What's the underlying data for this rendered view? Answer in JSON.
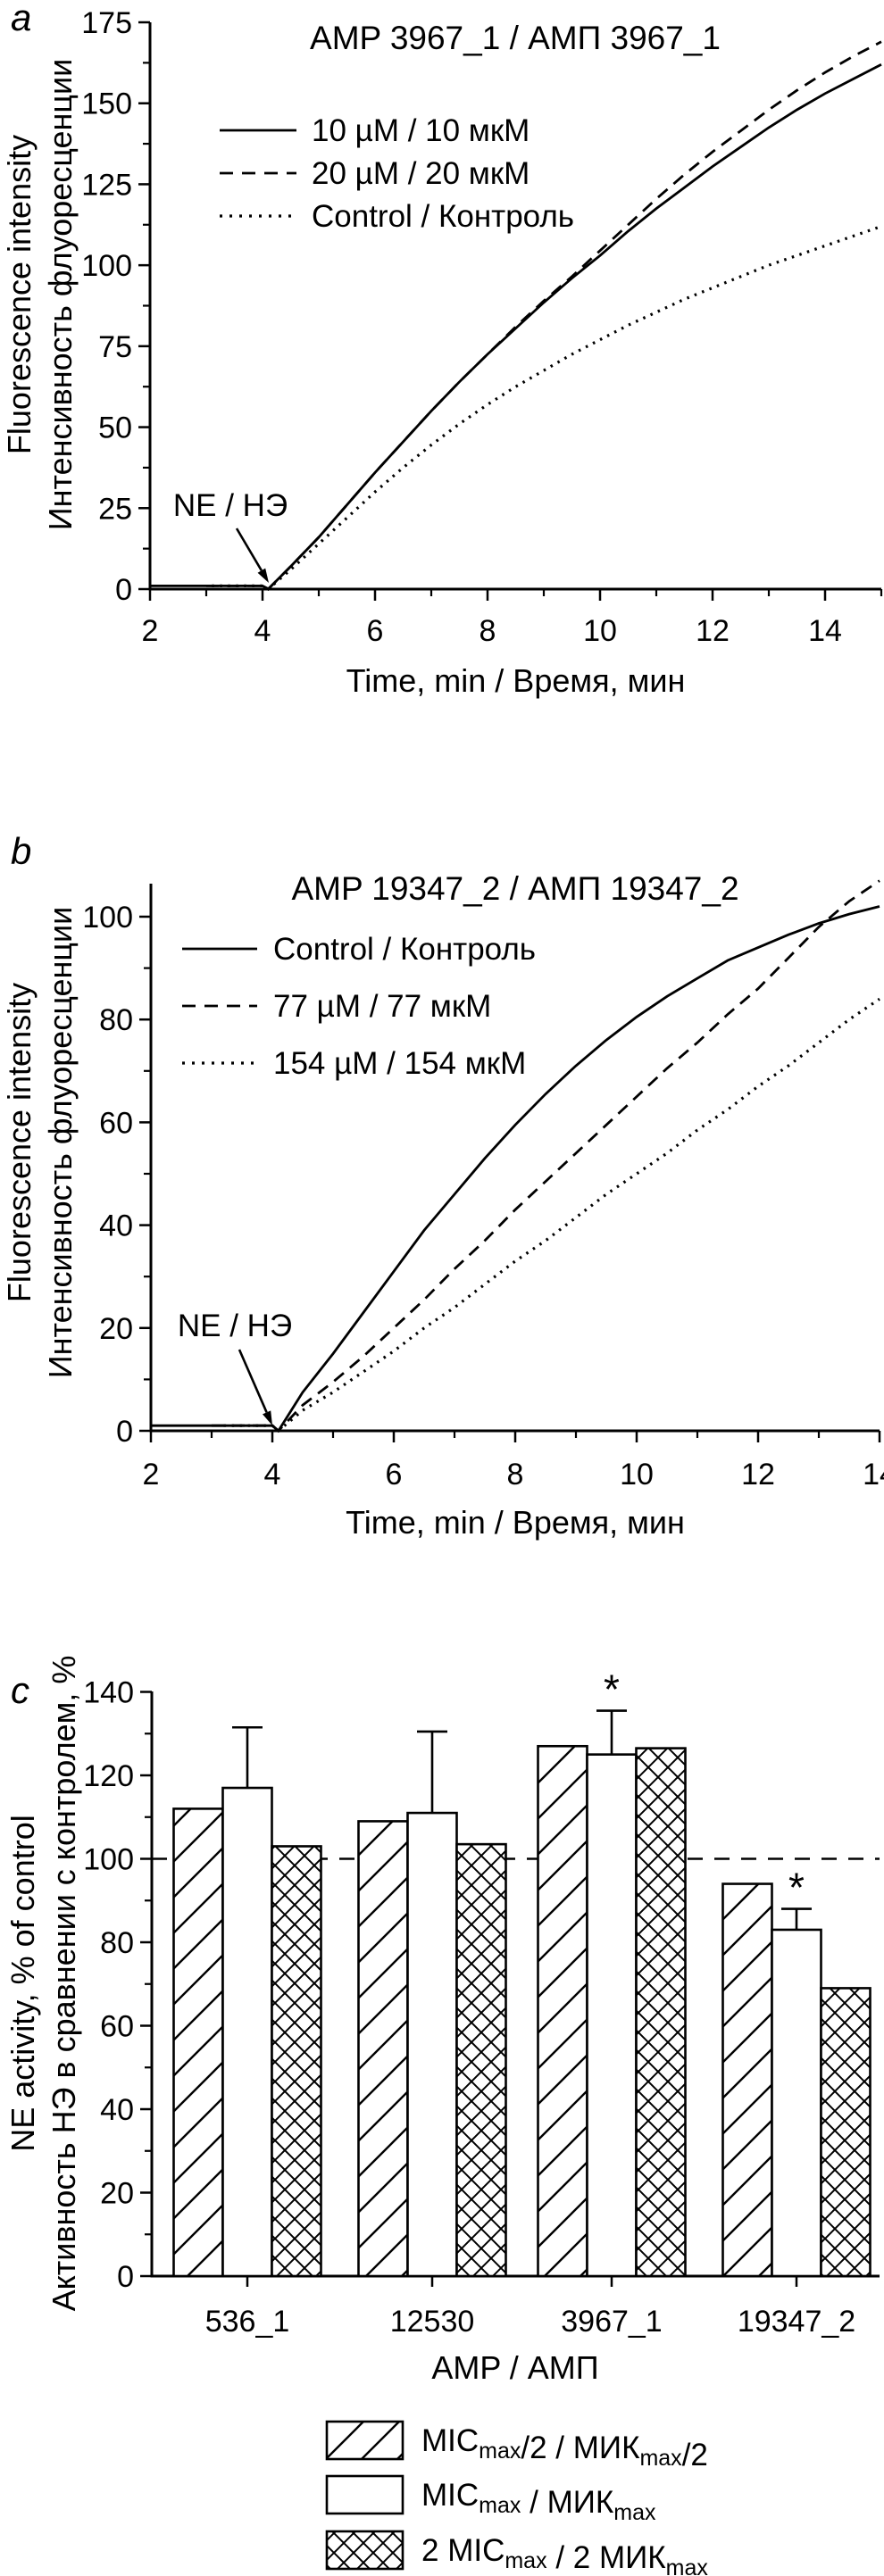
{
  "style": {
    "ink": "#000000",
    "background": "#ffffff"
  },
  "chart_data": [
    {
      "id": "a",
      "type": "line",
      "panel_letter": "a",
      "title": "AMP 3967_1 / АМП 3967_1",
      "xlabel": "Time, min / Время, мин",
      "ylabel_lines": [
        "Fluorescence intensity",
        "Интенсивность флуоресценции"
      ],
      "xlim": [
        2,
        15
      ],
      "ylim": [
        0,
        175
      ],
      "x_ticks": [
        2,
        4,
        6,
        8,
        10,
        12,
        14
      ],
      "x_minor_ticks": [
        3,
        5,
        7,
        9,
        11,
        13,
        15
      ],
      "y_ticks": [
        0,
        25,
        50,
        75,
        100,
        125,
        150,
        175
      ],
      "y_minor_ticks": [
        12.5,
        37.5,
        62.5,
        87.5,
        112.5,
        137.5,
        162.5
      ],
      "grid": false,
      "legend_position": "upper-left-inside",
      "annotation": {
        "text": "NE / НЭ",
        "arrow_to_x": 4.1,
        "arrow_to_y": 0
      },
      "series": [
        {
          "name": "10 µM / 10 мкМ",
          "style": "solid",
          "points": [
            [
              2,
              1
            ],
            [
              3,
              1
            ],
            [
              4,
              1
            ],
            [
              4.08,
              0.3
            ],
            [
              4.1,
              0
            ],
            [
              4.5,
              7
            ],
            [
              5,
              16
            ],
            [
              5.5,
              26
            ],
            [
              6,
              36
            ],
            [
              6.5,
              45.5
            ],
            [
              7,
              55
            ],
            [
              7.5,
              64
            ],
            [
              8,
              72.5
            ],
            [
              8.5,
              80.5
            ],
            [
              9,
              88.5
            ],
            [
              9.5,
              96
            ],
            [
              10,
              103
            ],
            [
              10.5,
              110.5
            ],
            [
              11,
              117.5
            ],
            [
              11.5,
              124
            ],
            [
              12,
              130.5
            ],
            [
              12.5,
              136.5
            ],
            [
              13,
              142.5
            ],
            [
              13.5,
              148
            ],
            [
              14,
              153
            ],
            [
              14.5,
              157.5
            ],
            [
              15,
              162
            ]
          ]
        },
        {
          "name": "20 µM / 20 мкМ",
          "style": "dashed",
          "points": [
            [
              3,
              1
            ],
            [
              4,
              1
            ],
            [
              4.1,
              0
            ],
            [
              4.5,
              7
            ],
            [
              5,
              16
            ],
            [
              5.5,
              26
            ],
            [
              6,
              36
            ],
            [
              6.5,
              45.5
            ],
            [
              7,
              55
            ],
            [
              7.5,
              64
            ],
            [
              8,
              72.5
            ],
            [
              8.5,
              81
            ],
            [
              9,
              89
            ],
            [
              9.5,
              96.5
            ],
            [
              10,
              104.5
            ],
            [
              10.5,
              112.5
            ],
            [
              11,
              120.5
            ],
            [
              11.5,
              128
            ],
            [
              12,
              135
            ],
            [
              12.5,
              141.5
            ],
            [
              13,
              148
            ],
            [
              13.5,
              154
            ],
            [
              14,
              159.5
            ],
            [
              14.5,
              164.5
            ],
            [
              15,
              169
            ]
          ]
        },
        {
          "name": "Control / Контроль",
          "style": "dotted",
          "points": [
            [
              3.1,
              1
            ],
            [
              4,
              1
            ],
            [
              4.1,
              0
            ],
            [
              4.5,
              6
            ],
            [
              5,
              14
            ],
            [
              5.5,
              22
            ],
            [
              6,
              30
            ],
            [
              6.5,
              37.5
            ],
            [
              7,
              44.5
            ],
            [
              7.5,
              51
            ],
            [
              8,
              57
            ],
            [
              8.5,
              62.5
            ],
            [
              9,
              67.5
            ],
            [
              9.5,
              72.5
            ],
            [
              10,
              77
            ],
            [
              10.5,
              81.5
            ],
            [
              11,
              85.5
            ],
            [
              11.5,
              89.5
            ],
            [
              12,
              93
            ],
            [
              12.5,
              96.5
            ],
            [
              13,
              100
            ],
            [
              13.5,
              103
            ],
            [
              14,
              106
            ],
            [
              14.5,
              109
            ],
            [
              15,
              112
            ]
          ]
        }
      ]
    },
    {
      "id": "b",
      "type": "line",
      "panel_letter": "b",
      "title": "AMP 19347_2 / АМП 19347_2",
      "xlabel": "Time, min / Время, мин",
      "ylabel_lines": [
        "Fluorescence intensity",
        "Интенсивность флуоресценции"
      ],
      "xlim": [
        2,
        14
      ],
      "ylim": [
        0,
        100
      ],
      "x_ticks": [
        2,
        4,
        6,
        8,
        10,
        12,
        14
      ],
      "x_minor_ticks": [
        3,
        5,
        7,
        9,
        11,
        13
      ],
      "y_ticks": [
        0,
        20,
        40,
        60,
        80,
        100
      ],
      "y_minor_ticks": [
        10,
        30,
        50,
        70,
        90
      ],
      "grid": false,
      "legend_position": "upper-left-inside",
      "annotation": {
        "text": "NE / НЭ",
        "arrow_to_x": 4.1,
        "arrow_to_y": 0
      },
      "series": [
        {
          "name": "Control / Контроль",
          "style": "solid",
          "points": [
            [
              2,
              1
            ],
            [
              3,
              1
            ],
            [
              4,
              1
            ],
            [
              4.1,
              0
            ],
            [
              4.5,
              7.5
            ],
            [
              5,
              15
            ],
            [
              5.5,
              23
            ],
            [
              6,
              31
            ],
            [
              6.5,
              39
            ],
            [
              7,
              46
            ],
            [
              7.5,
              53
            ],
            [
              8,
              59.5
            ],
            [
              8.5,
              65.5
            ],
            [
              9,
              71
            ],
            [
              9.5,
              76
            ],
            [
              10,
              80.5
            ],
            [
              10.5,
              84.5
            ],
            [
              11,
              88
            ],
            [
              11.5,
              91.5
            ],
            [
              12,
              94
            ],
            [
              12.5,
              96.5
            ],
            [
              13,
              98.7
            ],
            [
              13.5,
              100.5
            ],
            [
              14,
              102
            ]
          ]
        },
        {
          "name": "77 µM / 77 мкМ",
          "style": "dashed",
          "points": [
            [
              3,
              1
            ],
            [
              4,
              1
            ],
            [
              4.1,
              0
            ],
            [
              4.5,
              5
            ],
            [
              5,
              9.5
            ],
            [
              5.5,
              14.5
            ],
            [
              6,
              20
            ],
            [
              6.5,
              25.5
            ],
            [
              7,
              31.5
            ],
            [
              7.5,
              37
            ],
            [
              8,
              43
            ],
            [
              8.5,
              48.5
            ],
            [
              9,
              54
            ],
            [
              9.5,
              59.5
            ],
            [
              10,
              65
            ],
            [
              10.5,
              70.5
            ],
            [
              11,
              75.5
            ],
            [
              11.5,
              81
            ],
            [
              12,
              86
            ],
            [
              12.5,
              92
            ],
            [
              13,
              98
            ],
            [
              13.5,
              103
            ],
            [
              14,
              107
            ]
          ]
        },
        {
          "name": "154 µM / 154 мкМ",
          "style": "dotted",
          "points": [
            [
              3.2,
              1
            ],
            [
              4,
              1
            ],
            [
              4.1,
              0
            ],
            [
              4.5,
              4
            ],
            [
              5,
              7.5
            ],
            [
              5.5,
              11.5
            ],
            [
              6,
              15.5
            ],
            [
              6.5,
              20
            ],
            [
              7,
              24
            ],
            [
              7.5,
              28.5
            ],
            [
              8,
              33
            ],
            [
              8.5,
              37
            ],
            [
              9,
              41.5
            ],
            [
              9.5,
              46
            ],
            [
              10,
              50
            ],
            [
              10.5,
              54
            ],
            [
              11,
              58.5
            ],
            [
              11.5,
              62.5
            ],
            [
              12,
              67
            ],
            [
              12.5,
              71
            ],
            [
              13,
              75.5
            ],
            [
              13.5,
              80
            ],
            [
              14,
              84
            ]
          ]
        }
      ]
    },
    {
      "id": "c",
      "type": "bar",
      "panel_letter": "c",
      "title": "",
      "xlabel": "AMP / АМП",
      "ylabel_lines": [
        "NE activity, % of control",
        "Активность НЭ в сравнении с контролем, %"
      ],
      "ylim": [
        0,
        140
      ],
      "y_ticks": [
        0,
        20,
        40,
        60,
        80,
        100,
        120,
        140
      ],
      "y_minor_ticks": [
        10,
        30,
        50,
        70,
        90,
        110,
        130
      ],
      "categories": [
        "536_1",
        "12530",
        "3967_1",
        "19347_2"
      ],
      "reference_line": 100,
      "series": [
        {
          "name": "MICmax/2 / МИКmax/2",
          "pattern": "diagonal-hatch",
          "values": [
            112,
            109,
            127,
            94
          ],
          "error_plus": [
            0,
            0,
            0,
            0
          ],
          "significance": [
            "",
            "",
            "",
            ""
          ]
        },
        {
          "name": "MICmax / МИКmax",
          "pattern": "open",
          "values": [
            117,
            111,
            125,
            83
          ],
          "error_plus": [
            14.5,
            19.5,
            10.5,
            5
          ],
          "significance": [
            "",
            "",
            "*",
            "*"
          ]
        },
        {
          "name": "2 MICmax / 2 МИКmax",
          "pattern": "cross-hatch",
          "values": [
            103,
            103.5,
            126.5,
            69
          ],
          "error_plus": [
            0,
            0,
            0,
            0
          ],
          "significance": [
            "",
            "",
            "",
            ""
          ]
        }
      ]
    }
  ],
  "bottom_legend": {
    "entries": [
      {
        "pattern": "diagonal-hatch",
        "segments": [
          [
            "MIC",
            false
          ],
          [
            "max",
            true
          ],
          [
            "/2 / МИК",
            false
          ],
          [
            "max",
            true
          ],
          [
            "/2",
            false
          ]
        ]
      },
      {
        "pattern": "open",
        "segments": [
          [
            "MIC",
            false
          ],
          [
            "max",
            true
          ],
          [
            " / МИК",
            false
          ],
          [
            "max",
            true
          ]
        ]
      },
      {
        "pattern": "cross-hatch",
        "segments": [
          [
            "2 MIC",
            false
          ],
          [
            "max",
            true
          ],
          [
            " / 2 МИК",
            false
          ],
          [
            "max",
            true
          ]
        ]
      }
    ]
  }
}
